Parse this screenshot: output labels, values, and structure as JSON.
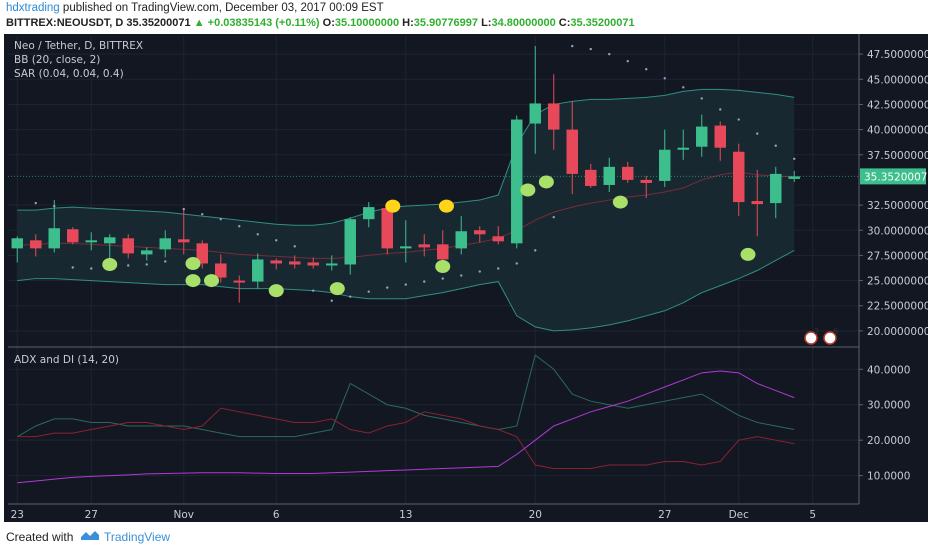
{
  "header": {
    "author": "hdxtrading",
    "published": "published on TradingView.com, December 03, 2017 00:09 EST",
    "symbol": "BITTREX:NEOUSDT, D",
    "price": "35.35200071",
    "change": "▲ +0.03835143 (+0.11%)",
    "o_label": "O:",
    "o_value": "35.10000000",
    "h_label": "H:",
    "h_value": "35.90776997",
    "l_label": "L:",
    "l_value": "34.80000000",
    "c_label": "C:",
    "c_value": "35.35200071"
  },
  "legend": {
    "title": "Neo / Tether, D, BITTREX",
    "bb": "BB (20, close, 2)",
    "sar": "SAR (0.04, 0.04, 0.4)",
    "adx": "ADX and DI (14, 20)"
  },
  "colors": {
    "background": "#131722",
    "up": "#3cbf8c",
    "down": "#e8495a",
    "bb": "#2f8f84",
    "sar": "#8fa3c7",
    "adx": "#b03ad6",
    "diplus": "#2b6a5a",
    "diminus": "#8a2231",
    "marker_green": "#a8e06a",
    "marker_yellow": "#ffd51a",
    "price_tag": "#3cbf8c"
  },
  "footer": {
    "created": "Created with",
    "brand": "TradingView"
  },
  "chart_data": {
    "type": "candlestick",
    "price_axis": {
      "ticks": [
        "47.50000000",
        "45.00000000",
        "42.50000000",
        "40.00000000",
        "37.50000000",
        "32.50000000",
        "30.00000000",
        "27.50000000",
        "25.00000000",
        "22.50000000",
        "20.00000000"
      ],
      "ylim": [
        18.5,
        49.3
      ],
      "last_price_label": "35.35200071",
      "last_price": 35.352
    },
    "adx_axis": {
      "ticks": [
        "40.0000",
        "30.0000",
        "20.0000",
        "10.0000"
      ],
      "ylim": [
        2,
        46
      ]
    },
    "x_axis": {
      "ticks": [
        {
          "label": "23",
          "index": 0
        },
        {
          "label": "27",
          "index": 4
        },
        {
          "label": "Nov",
          "index": 9
        },
        {
          "label": "6",
          "index": 14
        },
        {
          "label": "13",
          "index": 21
        },
        {
          "label": "20",
          "index": 28
        },
        {
          "label": "27",
          "index": 35
        },
        {
          "label": "Dec",
          "index": 39
        },
        {
          "label": "5",
          "index": 43
        }
      ]
    },
    "candles": [
      {
        "d": "Oct 22",
        "o": 28.2,
        "h": 29.4,
        "l": 26.8,
        "c": 29.2
      },
      {
        "d": "Oct 23",
        "o": 29.0,
        "h": 29.6,
        "l": 27.4,
        "c": 28.2
      },
      {
        "d": "Oct 24",
        "o": 28.2,
        "h": 33.0,
        "l": 27.8,
        "c": 30.2
      },
      {
        "d": "Oct 25",
        "o": 30.1,
        "h": 30.3,
        "l": 28.6,
        "c": 28.8
      },
      {
        "d": "Oct 26",
        "o": 28.8,
        "h": 29.8,
        "l": 28.0,
        "c": 29.0
      },
      {
        "d": "Oct 27",
        "o": 28.7,
        "h": 29.6,
        "l": 27.2,
        "c": 29.3
      },
      {
        "d": "Oct 28",
        "o": 29.2,
        "h": 29.6,
        "l": 27.2,
        "c": 27.7
      },
      {
        "d": "Oct 29",
        "o": 27.6,
        "h": 28.3,
        "l": 27.0,
        "c": 28.0
      },
      {
        "d": "Oct 30",
        "o": 28.1,
        "h": 30.0,
        "l": 27.3,
        "c": 29.2
      },
      {
        "d": "Oct 31",
        "o": 29.1,
        "h": 32.0,
        "l": 27.6,
        "c": 28.8
      },
      {
        "d": "Nov 1",
        "o": 28.7,
        "h": 29.0,
        "l": 26.2,
        "c": 26.7
      },
      {
        "d": "Nov 2",
        "o": 26.7,
        "h": 27.6,
        "l": 24.8,
        "c": 25.3
      },
      {
        "d": "Nov 3",
        "o": 25.0,
        "h": 25.5,
        "l": 22.8,
        "c": 24.9
      },
      {
        "d": "Nov 4",
        "o": 24.9,
        "h": 27.7,
        "l": 24.2,
        "c": 27.1
      },
      {
        "d": "Nov 5",
        "o": 27.0,
        "h": 27.2,
        "l": 26.1,
        "c": 26.7
      },
      {
        "d": "Nov 6",
        "o": 26.9,
        "h": 27.5,
        "l": 26.2,
        "c": 26.6
      },
      {
        "d": "Nov 7",
        "o": 26.8,
        "h": 27.3,
        "l": 26.2,
        "c": 26.5
      },
      {
        "d": "Nov 8",
        "o": 26.6,
        "h": 27.5,
        "l": 26.0,
        "c": 26.7
      },
      {
        "d": "Nov 9",
        "o": 26.6,
        "h": 31.3,
        "l": 25.6,
        "c": 31.1
      },
      {
        "d": "Nov 10",
        "o": 31.1,
        "h": 32.8,
        "l": 30.3,
        "c": 32.3
      },
      {
        "d": "Nov 11",
        "o": 32.2,
        "h": 32.8,
        "l": 27.6,
        "c": 28.2
      },
      {
        "d": "Nov 12",
        "o": 28.3,
        "h": 31.0,
        "l": 26.8,
        "c": 28.4
      },
      {
        "d": "Nov 13",
        "o": 28.6,
        "h": 29.6,
        "l": 27.4,
        "c": 28.3
      },
      {
        "d": "Nov 14",
        "o": 28.6,
        "h": 30.0,
        "l": 26.8,
        "c": 27.1
      },
      {
        "d": "Nov 15",
        "o": 28.2,
        "h": 31.4,
        "l": 27.6,
        "c": 29.9
      },
      {
        "d": "Nov 16",
        "o": 30.0,
        "h": 30.4,
        "l": 28.8,
        "c": 29.6
      },
      {
        "d": "Nov 17",
        "o": 29.4,
        "h": 30.4,
        "l": 28.6,
        "c": 28.9
      },
      {
        "d": "Nov 18",
        "o": 28.7,
        "h": 41.4,
        "l": 28.2,
        "c": 41.0
      },
      {
        "d": "Nov 19",
        "o": 40.6,
        "h": 48.3,
        "l": 37.6,
        "c": 42.6
      },
      {
        "d": "Nov 20",
        "o": 42.6,
        "h": 45.5,
        "l": 38.0,
        "c": 40.0
      },
      {
        "d": "Nov 21",
        "o": 40.0,
        "h": 42.8,
        "l": 33.6,
        "c": 35.6
      },
      {
        "d": "Nov 22",
        "o": 36.0,
        "h": 36.6,
        "l": 34.2,
        "c": 34.4
      },
      {
        "d": "Nov 23",
        "o": 34.5,
        "h": 37.2,
        "l": 33.8,
        "c": 36.3
      },
      {
        "d": "Nov 24",
        "o": 36.3,
        "h": 36.8,
        "l": 34.7,
        "c": 35.0
      },
      {
        "d": "Nov 25",
        "o": 35.0,
        "h": 35.4,
        "l": 33.2,
        "c": 34.7
      },
      {
        "d": "Nov 26",
        "o": 34.9,
        "h": 40.0,
        "l": 34.3,
        "c": 38.0
      },
      {
        "d": "Nov 27",
        "o": 38.0,
        "h": 40.0,
        "l": 37.0,
        "c": 38.2
      },
      {
        "d": "Nov 28",
        "o": 38.3,
        "h": 41.5,
        "l": 37.3,
        "c": 40.3
      },
      {
        "d": "Nov 29",
        "o": 40.4,
        "h": 40.8,
        "l": 36.9,
        "c": 38.2
      },
      {
        "d": "Nov 30",
        "o": 37.8,
        "h": 38.6,
        "l": 31.4,
        "c": 32.8
      },
      {
        "d": "Dec 1",
        "o": 32.9,
        "h": 36.0,
        "l": 29.4,
        "c": 32.6
      },
      {
        "d": "Dec 2",
        "o": 32.7,
        "h": 36.3,
        "l": 31.2,
        "c": 35.6
      },
      {
        "d": "Dec 3",
        "o": 35.1,
        "h": 35.9,
        "l": 34.8,
        "c": 35.352
      }
    ],
    "bollinger": {
      "basis": [
        28.5,
        28.6,
        28.7,
        28.7,
        28.6,
        28.5,
        28.4,
        28.3,
        28.2,
        28.1,
        28.0,
        27.8,
        27.6,
        27.5,
        27.4,
        27.3,
        27.2,
        27.2,
        27.3,
        27.5,
        27.7,
        27.8,
        28.0,
        28.2,
        28.5,
        28.8,
        29.2,
        30.0,
        31.0,
        31.8,
        32.3,
        32.7,
        33.0,
        33.3,
        33.5,
        33.8,
        34.2,
        35.0,
        35.5,
        35.8,
        35.5,
        35.4,
        35.3
      ],
      "upper": [
        32.0,
        32.0,
        32.2,
        32.3,
        32.2,
        32.1,
        32.0,
        31.9,
        31.8,
        31.6,
        31.4,
        31.2,
        31.0,
        30.8,
        30.6,
        30.5,
        30.5,
        30.7,
        31.2,
        31.8,
        32.2,
        32.4,
        32.5,
        32.6,
        32.8,
        33.0,
        33.5,
        38.5,
        41.5,
        42.5,
        42.8,
        43.0,
        43.0,
        43.1,
        43.2,
        43.4,
        43.8,
        44.0,
        44.0,
        43.9,
        43.7,
        43.5,
        43.2
      ],
      "lower": [
        25.0,
        25.2,
        25.2,
        25.1,
        25.0,
        24.9,
        24.8,
        24.7,
        24.6,
        24.6,
        24.6,
        24.4,
        24.2,
        24.2,
        24.2,
        24.1,
        24.0,
        23.8,
        23.4,
        23.2,
        23.2,
        23.2,
        23.5,
        23.8,
        24.2,
        24.6,
        24.9,
        21.5,
        20.4,
        20.0,
        20.1,
        20.3,
        20.6,
        21.0,
        21.5,
        22.0,
        22.8,
        23.8,
        24.5,
        25.2,
        26.0,
        27.0,
        28.0
      ]
    },
    "sar": [
      {
        "i": 1,
        "v": 32.7
      },
      {
        "i": 2,
        "v": 32.4
      },
      {
        "i": 3,
        "v": 26.3
      },
      {
        "i": 4,
        "v": 26.2
      },
      {
        "i": 5,
        "v": 26.3
      },
      {
        "i": 6,
        "v": 26.5
      },
      {
        "i": 7,
        "v": 26.6
      },
      {
        "i": 8,
        "v": 26.9
      },
      {
        "i": 9,
        "v": 32.1
      },
      {
        "i": 10,
        "v": 31.6
      },
      {
        "i": 11,
        "v": 31.1
      },
      {
        "i": 12,
        "v": 30.4
      },
      {
        "i": 13,
        "v": 29.6
      },
      {
        "i": 14,
        "v": 29.0
      },
      {
        "i": 15,
        "v": 28.4
      },
      {
        "i": 16,
        "v": 24.0
      },
      {
        "i": 17,
        "v": 23.0
      },
      {
        "i": 18,
        "v": 23.4
      },
      {
        "i": 19,
        "v": 23.9
      },
      {
        "i": 20,
        "v": 24.3
      },
      {
        "i": 21,
        "v": 24.6
      },
      {
        "i": 22,
        "v": 24.9
      },
      {
        "i": 23,
        "v": 25.2
      },
      {
        "i": 24,
        "v": 25.5
      },
      {
        "i": 25,
        "v": 25.9
      },
      {
        "i": 26,
        "v": 26.2
      },
      {
        "i": 27,
        "v": 26.7
      },
      {
        "i": 28,
        "v": 28.0
      },
      {
        "i": 29,
        "v": 31.3
      },
      {
        "i": 30,
        "v": 48.3
      },
      {
        "i": 31,
        "v": 48.0
      },
      {
        "i": 32,
        "v": 47.5
      },
      {
        "i": 33,
        "v": 46.8
      },
      {
        "i": 34,
        "v": 46.0
      },
      {
        "i": 35,
        "v": 45.1
      },
      {
        "i": 36,
        "v": 44.2
      },
      {
        "i": 37,
        "v": 43.1
      },
      {
        "i": 38,
        "v": 42.0
      },
      {
        "i": 39,
        "v": 41.0
      },
      {
        "i": 40,
        "v": 39.6
      },
      {
        "i": 41,
        "v": 38.4
      },
      {
        "i": 42,
        "v": 37.1
      }
    ],
    "markers": [
      {
        "i": 5,
        "v": 26.6,
        "color": "green"
      },
      {
        "i": 9.5,
        "v": 26.7,
        "color": "green"
      },
      {
        "i": 9.5,
        "v": 25.0,
        "color": "green"
      },
      {
        "i": 10.5,
        "v": 25.0,
        "color": "green"
      },
      {
        "i": 14,
        "v": 24.0,
        "color": "green"
      },
      {
        "i": 17.3,
        "v": 24.2,
        "color": "green"
      },
      {
        "i": 23,
        "v": 26.4,
        "color": "green"
      },
      {
        "i": 20.3,
        "v": 32.4,
        "color": "yellow"
      },
      {
        "i": 23.2,
        "v": 32.4,
        "color": "yellow"
      },
      {
        "i": 27.6,
        "v": 34.0,
        "color": "green"
      },
      {
        "i": 28.6,
        "v": 34.8,
        "color": "green"
      },
      {
        "i": 32.6,
        "v": 32.8,
        "color": "green"
      },
      {
        "i": 39.5,
        "v": 27.6,
        "color": "green"
      }
    ],
    "adx_series": {
      "adx": [
        8,
        8.5,
        9,
        9.5,
        9.8,
        10,
        10.2,
        10.5,
        10.6,
        10.7,
        10.8,
        10.8,
        10.8,
        10.7,
        10.6,
        10.6,
        10.6,
        10.8,
        11,
        11.2,
        11.4,
        11.6,
        11.8,
        12,
        12.2,
        12.4,
        12.6,
        16,
        20,
        24,
        26,
        28,
        29.5,
        31,
        33,
        35,
        37,
        39,
        39.5,
        39,
        36,
        34,
        32
      ],
      "di_plus": [
        21,
        24,
        26,
        26,
        25,
        25,
        24,
        24,
        24,
        24,
        23,
        22,
        21,
        21,
        21,
        21,
        22,
        23,
        36,
        33,
        30,
        29,
        27,
        26,
        25,
        24,
        23,
        24,
        44,
        40,
        33,
        31,
        30,
        29,
        30,
        31,
        32,
        33,
        30,
        27,
        25,
        24,
        23
      ],
      "di_minus": [
        21,
        21,
        22,
        22,
        23,
        24,
        25,
        25,
        24,
        23,
        24,
        29,
        28,
        27,
        26,
        25,
        25,
        26,
        23,
        22,
        24,
        25,
        28,
        27,
        26,
        24,
        23,
        21,
        13,
        12,
        12,
        12,
        13,
        13,
        13,
        14,
        14,
        13,
        14,
        20,
        21,
        20,
        19
      ]
    }
  }
}
